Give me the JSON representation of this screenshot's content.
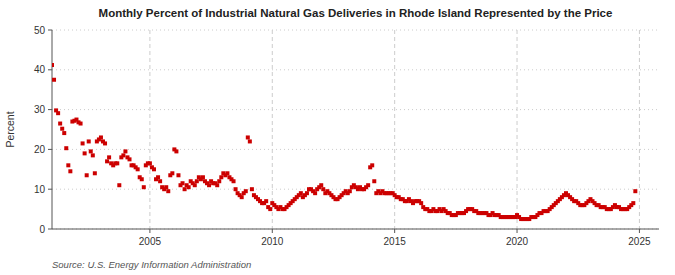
{
  "chart_data": {
    "type": "scatter",
    "title": "Monthly Percent of Industrial Natural Gas Deliveries in Rhode Island Represented by the Price",
    "ylabel": "Percent",
    "source": "Source: U.S. Energy Information Administration",
    "color": "#cc0000",
    "marker": "square",
    "grid": true,
    "xlim": [
      2001.0,
      2025.8
    ],
    "xticks": [
      2005,
      2010,
      2015,
      2020,
      2025
    ],
    "ylim": [
      0,
      50
    ],
    "yticks": [
      0,
      10,
      20,
      30,
      40,
      50
    ],
    "x": [
      2001.0,
      2001.083,
      2001.167,
      2001.25,
      2001.333,
      2001.417,
      2001.5,
      2001.583,
      2001.667,
      2001.75,
      2001.833,
      2001.917,
      2002.0,
      2002.083,
      2002.167,
      2002.25,
      2002.333,
      2002.417,
      2002.5,
      2002.583,
      2002.667,
      2002.75,
      2002.833,
      2002.917,
      2003.0,
      2003.083,
      2003.167,
      2003.25,
      2003.333,
      2003.417,
      2003.5,
      2003.583,
      2003.667,
      2003.75,
      2003.833,
      2003.917,
      2004.0,
      2004.083,
      2004.167,
      2004.25,
      2004.333,
      2004.417,
      2004.5,
      2004.583,
      2004.667,
      2004.75,
      2004.833,
      2004.917,
      2005.0,
      2005.083,
      2005.167,
      2005.25,
      2005.333,
      2005.417,
      2005.5,
      2005.583,
      2005.667,
      2005.75,
      2005.833,
      2005.917,
      2006.0,
      2006.083,
      2006.167,
      2006.25,
      2006.333,
      2006.417,
      2006.5,
      2006.583,
      2006.667,
      2006.75,
      2006.833,
      2006.917,
      2007.0,
      2007.083,
      2007.167,
      2007.25,
      2007.333,
      2007.417,
      2007.5,
      2007.583,
      2007.667,
      2007.75,
      2007.833,
      2007.917,
      2008.0,
      2008.083,
      2008.167,
      2008.25,
      2008.333,
      2008.417,
      2008.5,
      2008.583,
      2008.667,
      2008.75,
      2008.833,
      2008.917,
      2009.0,
      2009.083,
      2009.167,
      2009.25,
      2009.333,
      2009.417,
      2009.5,
      2009.583,
      2009.667,
      2009.75,
      2009.833,
      2009.917,
      2010.0,
      2010.083,
      2010.167,
      2010.25,
      2010.333,
      2010.417,
      2010.5,
      2010.583,
      2010.667,
      2010.75,
      2010.833,
      2010.917,
      2011.0,
      2011.083,
      2011.167,
      2011.25,
      2011.333,
      2011.417,
      2011.5,
      2011.583,
      2011.667,
      2011.75,
      2011.833,
      2011.917,
      2012.0,
      2012.083,
      2012.167,
      2012.25,
      2012.333,
      2012.417,
      2012.5,
      2012.583,
      2012.667,
      2012.75,
      2012.833,
      2012.917,
      2013.0,
      2013.083,
      2013.167,
      2013.25,
      2013.333,
      2013.417,
      2013.5,
      2013.583,
      2013.667,
      2013.75,
      2013.833,
      2013.917,
      2014.0,
      2014.083,
      2014.167,
      2014.25,
      2014.333,
      2014.417,
      2014.5,
      2014.583,
      2014.667,
      2014.75,
      2014.833,
      2014.917,
      2015.0,
      2015.083,
      2015.167,
      2015.25,
      2015.333,
      2015.417,
      2015.5,
      2015.583,
      2015.667,
      2015.75,
      2015.833,
      2015.917,
      2016.0,
      2016.083,
      2016.167,
      2016.25,
      2016.333,
      2016.417,
      2016.5,
      2016.583,
      2016.667,
      2016.75,
      2016.833,
      2016.917,
      2017.0,
      2017.083,
      2017.167,
      2017.25,
      2017.333,
      2017.417,
      2017.5,
      2017.583,
      2017.667,
      2017.75,
      2017.833,
      2017.917,
      2018.0,
      2018.083,
      2018.167,
      2018.25,
      2018.333,
      2018.417,
      2018.5,
      2018.583,
      2018.667,
      2018.75,
      2018.833,
      2018.917,
      2019.0,
      2019.083,
      2019.167,
      2019.25,
      2019.333,
      2019.417,
      2019.5,
      2019.583,
      2019.667,
      2019.75,
      2019.833,
      2019.917,
      2020.0,
      2020.083,
      2020.167,
      2020.25,
      2020.333,
      2020.417,
      2020.5,
      2020.583,
      2020.667,
      2020.75,
      2020.833,
      2020.917,
      2021.0,
      2021.083,
      2021.167,
      2021.25,
      2021.333,
      2021.417,
      2021.5,
      2021.583,
      2021.667,
      2021.75,
      2021.833,
      2021.917,
      2022.0,
      2022.083,
      2022.167,
      2022.25,
      2022.333,
      2022.417,
      2022.5,
      2022.583,
      2022.667,
      2022.75,
      2022.833,
      2022.917,
      2023.0,
      2023.083,
      2023.167,
      2023.25,
      2023.333,
      2023.417,
      2023.5,
      2023.583,
      2023.667,
      2023.75,
      2023.833,
      2023.917,
      2024.0,
      2024.083,
      2024.167,
      2024.25,
      2024.333,
      2024.417,
      2024.5,
      2024.583,
      2024.667,
      2024.75,
      2024.833
    ],
    "values": [
      41.2,
      37.5,
      29.8,
      29.1,
      26.5,
      25.2,
      24.1,
      20.3,
      16.0,
      14.5,
      27.0,
      27.2,
      27.5,
      26.8,
      26.5,
      21.5,
      19.0,
      13.5,
      22.0,
      19.5,
      18.5,
      14.0,
      22.0,
      22.5,
      23.0,
      22.0,
      21.5,
      17.0,
      18.0,
      16.5,
      16.0,
      16.5,
      16.5,
      11.0,
      18.0,
      18.5,
      19.5,
      18.0,
      17.5,
      16.0,
      16.0,
      15.5,
      15.0,
      13.0,
      12.5,
      10.5,
      16.0,
      16.5,
      16.5,
      15.5,
      15.0,
      12.5,
      13.0,
      12.0,
      10.5,
      10.0,
      10.5,
      9.5,
      13.5,
      14.0,
      20.0,
      19.5,
      13.5,
      11.0,
      11.5,
      10.0,
      11.0,
      10.5,
      12.0,
      11.5,
      11.0,
      12.0,
      13.0,
      12.5,
      13.0,
      12.0,
      11.5,
      11.0,
      12.0,
      11.5,
      11.5,
      11.0,
      12.0,
      13.0,
      14.0,
      13.5,
      14.0,
      13.0,
      12.5,
      12.0,
      10.0,
      9.0,
      8.5,
      8.0,
      9.0,
      9.5,
      23.0,
      22.0,
      10.0,
      8.5,
      8.0,
      7.5,
      7.0,
      6.5,
      6.5,
      7.0,
      5.5,
      5.0,
      6.5,
      6.0,
      5.5,
      5.0,
      5.5,
      5.0,
      5.0,
      5.5,
      6.0,
      6.5,
      7.0,
      7.5,
      8.0,
      8.5,
      9.0,
      8.0,
      8.5,
      9.0,
      10.0,
      10.0,
      9.5,
      9.0,
      10.0,
      10.5,
      11.0,
      10.0,
      9.0,
      9.5,
      9.0,
      8.5,
      8.0,
      7.5,
      7.5,
      8.0,
      8.5,
      9.0,
      9.5,
      9.0,
      9.5,
      10.5,
      11.0,
      10.5,
      10.0,
      10.5,
      10.0,
      10.0,
      10.5,
      11.0,
      15.5,
      16.0,
      12.0,
      9.0,
      9.5,
      9.0,
      9.5,
      9.0,
      9.0,
      9.0,
      9.0,
      9.0,
      8.5,
      8.0,
      8.0,
      7.5,
      7.5,
      7.0,
      7.0,
      7.5,
      7.0,
      6.5,
      7.0,
      7.0,
      7.0,
      6.5,
      5.5,
      5.0,
      5.0,
      4.5,
      4.5,
      5.0,
      4.5,
      4.5,
      5.0,
      4.5,
      5.0,
      4.5,
      4.0,
      4.0,
      3.5,
      3.5,
      3.5,
      4.0,
      4.0,
      4.0,
      4.0,
      4.5,
      5.0,
      5.0,
      5.0,
      4.5,
      4.5,
      4.0,
      4.0,
      4.0,
      4.0,
      4.0,
      3.5,
      3.5,
      4.0,
      3.5,
      3.5,
      3.5,
      3.0,
      3.0,
      3.0,
      3.0,
      3.0,
      3.0,
      3.0,
      3.0,
      3.5,
      3.0,
      2.5,
      2.5,
      2.5,
      2.5,
      2.5,
      3.0,
      3.0,
      3.0,
      3.5,
      4.0,
      4.0,
      4.5,
      4.5,
      4.5,
      5.0,
      5.5,
      6.0,
      6.5,
      7.0,
      7.5,
      8.0,
      8.5,
      9.0,
      8.5,
      8.0,
      7.5,
      7.0,
      7.0,
      6.5,
      6.0,
      6.0,
      6.0,
      6.5,
      7.0,
      7.5,
      7.0,
      6.5,
      6.0,
      6.0,
      5.5,
      5.5,
      5.5,
      5.0,
      5.0,
      5.0,
      5.5,
      6.0,
      5.5,
      5.5,
      5.0,
      5.0,
      5.0,
      5.0,
      5.5,
      6.0,
      6.5,
      9.5
    ]
  }
}
